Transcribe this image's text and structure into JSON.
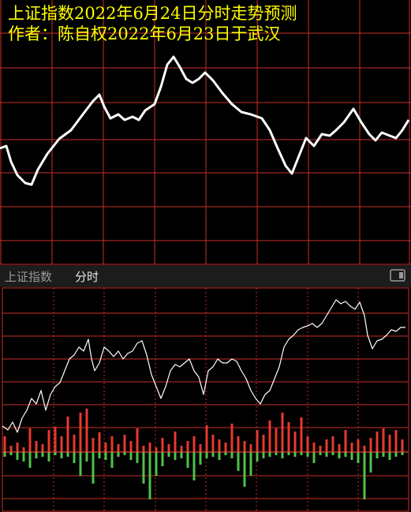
{
  "panel_header": {
    "name": "上证指数",
    "mode": "分时"
  },
  "chart_data": [
    {
      "type": "line",
      "title": "上证指数2022年6月24日分时走势预测",
      "subtitle": "作者：陈自权2022年6月23日于武汉",
      "color": "#ffffff",
      "xlim": [
        0,
        520
      ],
      "ylim": [
        0,
        335
      ],
      "x": [
        0,
        8,
        14,
        22,
        32,
        40,
        48,
        60,
        75,
        90,
        105,
        118,
        126,
        132,
        140,
        150,
        158,
        168,
        176,
        184,
        196,
        204,
        212,
        220,
        228,
        236,
        244,
        252,
        260,
        270,
        282,
        294,
        306,
        318,
        332,
        342,
        352,
        362,
        370,
        378,
        388,
        398,
        408,
        418,
        426,
        436,
        448,
        458,
        468,
        476,
        484,
        494,
        502,
        510,
        518
      ],
      "values": [
        147,
        150,
        130,
        113,
        103,
        101,
        120,
        140,
        159,
        170,
        190,
        207,
        215,
        200,
        185,
        190,
        183,
        187,
        183,
        195,
        203,
        225,
        253,
        263,
        250,
        235,
        230,
        235,
        243,
        233,
        217,
        203,
        193,
        190,
        185,
        170,
        147,
        125,
        115,
        135,
        160,
        150,
        165,
        163,
        170,
        180,
        197,
        180,
        165,
        157,
        167,
        163,
        160,
        170,
        183
      ]
    },
    {
      "type": "line",
      "color": "#ffffff",
      "xlim": [
        0,
        520
      ],
      "ylim": [
        0,
        284
      ],
      "x": [
        3,
        10,
        16,
        22,
        28,
        34,
        40,
        46,
        52,
        58,
        64,
        70,
        76,
        82,
        88,
        94,
        100,
        106,
        112,
        116,
        120,
        126,
        132,
        138,
        144,
        150,
        156,
        162,
        168,
        174,
        180,
        186,
        192,
        198,
        204,
        210,
        216,
        222,
        228,
        234,
        240,
        246,
        252,
        258,
        264,
        270,
        276,
        282,
        288,
        294,
        300,
        306,
        312,
        318,
        324,
        330,
        336,
        342,
        348,
        354,
        360,
        366,
        372,
        378,
        384,
        390,
        396,
        402,
        408,
        414,
        420,
        426,
        432,
        438,
        444,
        450,
        456,
        462,
        466,
        472,
        478,
        484,
        490,
        496,
        502,
        508,
        514
      ],
      "values": [
        109,
        104,
        114,
        101,
        119,
        129,
        144,
        137,
        154,
        129,
        149,
        159,
        164,
        179,
        194,
        199,
        209,
        204,
        219,
        194,
        179,
        189,
        209,
        204,
        197,
        204,
        194,
        201,
        204,
        214,
        217,
        199,
        174,
        159,
        144,
        159,
        179,
        187,
        184,
        189,
        194,
        179,
        171,
        149,
        179,
        184,
        194,
        189,
        189,
        194,
        191,
        179,
        169,
        154,
        144,
        137,
        149,
        154,
        169,
        184,
        209,
        219,
        224,
        231,
        234,
        236,
        239,
        234,
        239,
        249,
        259,
        269,
        264,
        267,
        261,
        257,
        266,
        249,
        224,
        207,
        217,
        219,
        224,
        231,
        229,
        234,
        234
      ]
    },
    {
      "type": "bar",
      "xlim": [
        0,
        520
      ],
      "ylim": [
        -76,
        208
      ],
      "x": [
        6,
        14,
        22,
        30,
        38,
        46,
        54,
        62,
        70,
        78,
        86,
        94,
        102,
        110,
        118,
        126,
        134,
        142,
        150,
        158,
        166,
        174,
        182,
        190,
        198,
        206,
        214,
        222,
        230,
        238,
        246,
        254,
        262,
        270,
        278,
        286,
        294,
        302,
        310,
        318,
        326,
        334,
        342,
        350,
        358,
        366,
        374,
        382,
        390,
        398,
        406,
        414,
        422,
        430,
        438,
        446,
        454,
        462,
        470,
        478,
        486,
        494,
        502,
        510
      ],
      "series": [
        {
          "color": "#e8392f",
          "values": [
            20,
            8,
            12,
            6,
            30,
            14,
            10,
            28,
            32,
            20,
            45,
            22,
            50,
            55,
            18,
            25,
            12,
            20,
            10,
            22,
            14,
            30,
            8,
            12,
            6,
            18,
            10,
            26,
            8,
            14,
            20,
            10,
            34,
            22,
            16,
            12,
            36,
            20,
            14,
            10,
            28,
            22,
            40,
            30,
            50,
            38,
            26,
            44,
            20,
            12,
            8,
            16,
            20,
            10,
            28,
            12,
            16,
            8,
            18,
            26,
            30,
            22,
            28,
            16
          ]
        },
        {
          "color": "#4fc24a",
          "values": [
            -6,
            -4,
            -10,
            -12,
            -20,
            -8,
            -6,
            -12,
            -4,
            -8,
            -6,
            -14,
            -30,
            -12,
            -40,
            -8,
            -10,
            -20,
            -6,
            -4,
            -10,
            -14,
            -40,
            -60,
            -30,
            -18,
            -6,
            -10,
            -8,
            -20,
            -36,
            -16,
            -8,
            -6,
            -10,
            -4,
            -8,
            -24,
            -44,
            -30,
            -12,
            -8,
            -6,
            -4,
            -8,
            -4,
            -6,
            -4,
            -6,
            -14,
            -4,
            -6,
            -4,
            -8,
            -6,
            -10,
            -14,
            -60,
            -26,
            -8,
            -6,
            -10,
            -6,
            -4
          ]
        }
      ]
    }
  ]
}
